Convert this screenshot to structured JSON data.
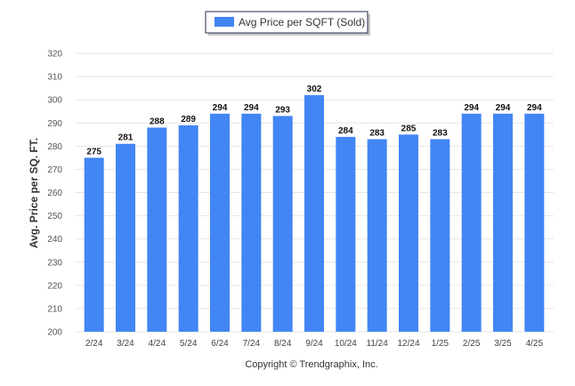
{
  "chart_data": {
    "type": "bar",
    "categories": [
      "2/24",
      "3/24",
      "4/24",
      "5/24",
      "6/24",
      "7/24",
      "8/24",
      "9/24",
      "10/24",
      "11/24",
      "12/24",
      "1/25",
      "2/25",
      "3/25",
      "4/25"
    ],
    "series": [
      {
        "name": "Avg Price per SQFT (Sold)",
        "values": [
          275,
          281,
          288,
          289,
          294,
          294,
          293,
          302,
          284,
          283,
          285,
          283,
          294,
          294,
          294
        ],
        "color": "#4285f4"
      }
    ],
    "data_labels": [
      "275",
      "281",
      "288",
      "289",
      "294",
      "294",
      "293",
      "302",
      "284",
      "283",
      "285",
      "283",
      "294",
      "294",
      "294"
    ],
    "ylabel": "Avg. Price per SQ. FT.",
    "xlabel": "",
    "ylim": [
      200,
      320
    ],
    "yticks": [
      "200",
      "210",
      "220",
      "230",
      "240",
      "250",
      "260",
      "270",
      "280",
      "290",
      "300",
      "310",
      "320"
    ],
    "grid": true,
    "legend_position": "top-center"
  },
  "footer": {
    "credit": "Copyright © Trendgraphix, Inc."
  }
}
